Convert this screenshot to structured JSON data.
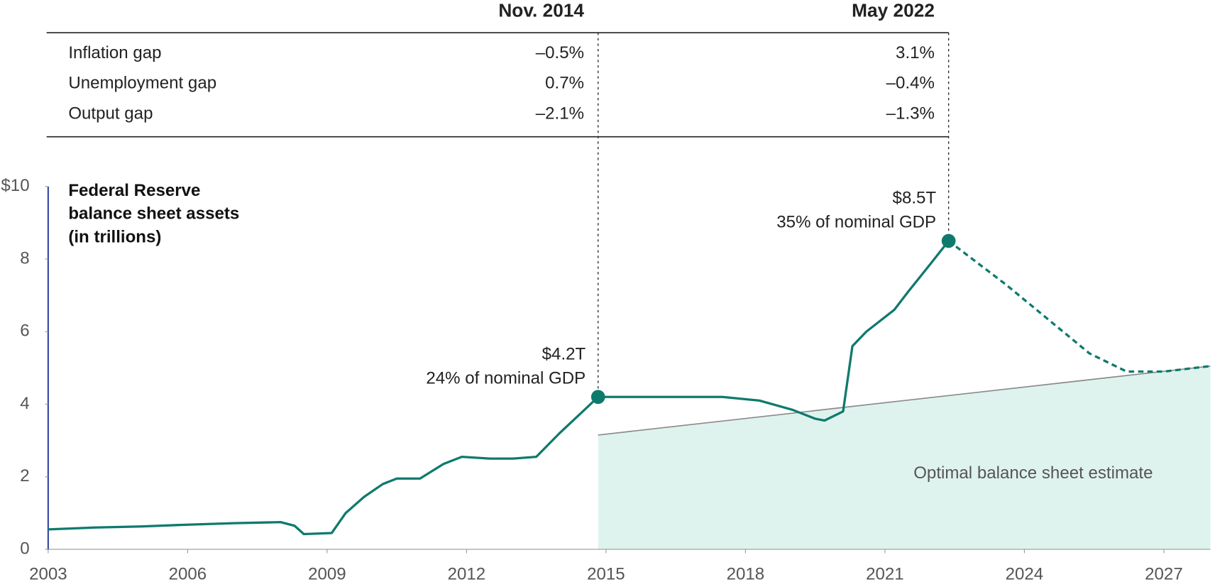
{
  "table": {
    "columns": [
      "Nov. 2014",
      "May 2022"
    ],
    "rows": [
      [
        "Inflation gap",
        "–0.5%",
        "3.1%"
      ],
      [
        "Unemployment gap",
        "0.7%",
        "–0.4%"
      ],
      [
        "Output gap",
        "–2.1%",
        "–1.3%"
      ]
    ]
  },
  "chart_data": {
    "type": "line",
    "y_label": "Federal Reserve balance sheet assets (in trillions)",
    "xlim": [
      2003,
      2028
    ],
    "xticks": [
      2003,
      2006,
      2009,
      2012,
      2015,
      2018,
      2021,
      2024,
      2027
    ],
    "ylim": [
      0,
      10
    ],
    "yticks": [
      0,
      2,
      4,
      6,
      8,
      {
        "value": 10,
        "label": "$10"
      }
    ],
    "series": [
      {
        "color": "#0e7a6d",
        "style": "area",
        "name": "Optimal balance sheet estimate",
        "fill": "#dff3ee",
        "line_color": "#8a8a8a",
        "x": [
          2014.83,
          2028
        ],
        "values": [
          3.15,
          5.05
        ]
      },
      {
        "color": "#0e7a6d",
        "style": "solid",
        "x": [
          2003,
          2004,
          2005,
          2006,
          2007,
          2008,
          2008.3,
          2008.5,
          2009.1,
          2009.4,
          2009.8,
          2010.2,
          2010.5,
          2011.0,
          2011.5,
          2011.9,
          2012.5,
          2013.0,
          2013.5,
          2014.0,
          2014.5,
          2014.83,
          2015.5,
          2016.5,
          2017.5,
          2018.3,
          2019.0,
          2019.5,
          2019.7,
          2020.1,
          2020.3,
          2020.6,
          2021.2,
          2021.5,
          2022.0,
          2022.37
        ],
        "values": [
          0.55,
          0.6,
          0.63,
          0.68,
          0.72,
          0.75,
          0.65,
          0.42,
          0.45,
          1.0,
          1.45,
          1.8,
          1.95,
          1.95,
          2.35,
          2.55,
          2.5,
          2.5,
          2.55,
          3.2,
          3.8,
          4.2,
          4.2,
          4.2,
          4.2,
          4.1,
          3.85,
          3.6,
          3.55,
          3.8,
          5.6,
          6.0,
          6.6,
          7.1,
          7.9,
          8.5
        ]
      },
      {
        "color": "#0e7a6d",
        "style": "dashed",
        "x": [
          2022.37,
          2023.6,
          2025.4,
          2026.2,
          2027,
          2028
        ],
        "values": [
          8.5,
          7.3,
          5.4,
          4.9,
          4.9,
          5.05
        ]
      }
    ],
    "markers": {
      "color": "#0e7a6d",
      "x": [
        2014.83,
        2022.37
      ],
      "values": [
        4.2,
        8.5
      ],
      "value_labels": [
        "$4.2T",
        "$8.5T"
      ],
      "notes": [
        "24% of nominal GDP",
        "35% of nominal GDP"
      ]
    }
  }
}
